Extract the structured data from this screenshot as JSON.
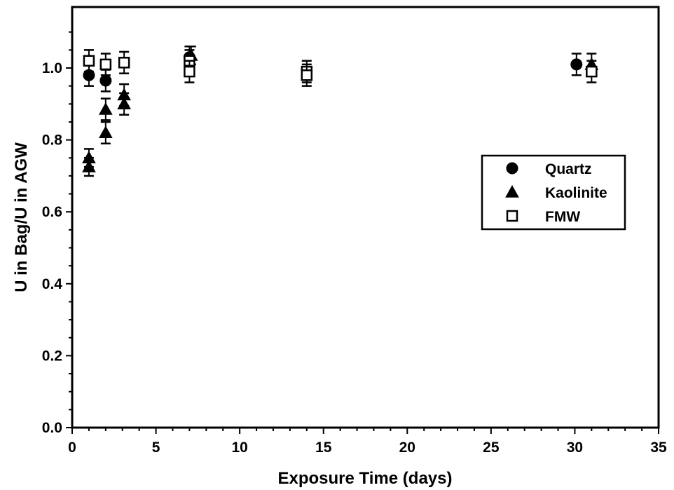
{
  "chart_data": {
    "type": "scatter",
    "title": "",
    "xlabel": "Exposure Time (days)",
    "ylabel": "U in Bag/U in AGW",
    "xlim": [
      0,
      35
    ],
    "ylim": [
      0.0,
      1.1
    ],
    "xticks": [
      "0",
      "5",
      "10",
      "15",
      "20",
      "25",
      "30",
      "35"
    ],
    "yticks": [
      "0.0",
      "0.2",
      "0.4",
      "0.6",
      "0.8",
      "1.0"
    ],
    "grid": false,
    "legend_position": "right",
    "series": [
      {
        "name": "Quartz",
        "marker": "circle-filled",
        "points": [
          {
            "x": 1.0,
            "y": 0.98,
            "err": 0.03
          },
          {
            "x": 2.0,
            "y": 0.965,
            "err": 0.03
          },
          {
            "x": 7.0,
            "y": 1.03,
            "err": 0.03
          },
          {
            "x": 30.1,
            "y": 1.01,
            "err": 0.03
          }
        ]
      },
      {
        "name": "Kaolinite",
        "marker": "triangle-filled",
        "points": [
          {
            "x": 1.0,
            "y": 0.75,
            "err": 0.025
          },
          {
            "x": 1.0,
            "y": 0.725,
            "err": 0.025
          },
          {
            "x": 2.0,
            "y": 0.885,
            "err": 0.03
          },
          {
            "x": 2.0,
            "y": 0.82,
            "err": 0.03
          },
          {
            "x": 3.1,
            "y": 0.925,
            "err": 0.03
          },
          {
            "x": 3.1,
            "y": 0.9,
            "err": 0.03
          },
          {
            "x": 7.1,
            "y": 1.035,
            "err": 0.025
          },
          {
            "x": 31.0,
            "y": 1.01,
            "err": 0.03
          }
        ]
      },
      {
        "name": "FMW",
        "marker": "square-open",
        "points": [
          {
            "x": 1.0,
            "y": 1.02,
            "err": 0.03
          },
          {
            "x": 2.0,
            "y": 1.01,
            "err": 0.03
          },
          {
            "x": 3.1,
            "y": 1.015,
            "err": 0.03
          },
          {
            "x": 7.0,
            "y": 1.02,
            "err": 0.03
          },
          {
            "x": 7.0,
            "y": 0.99,
            "err": 0.03
          },
          {
            "x": 14.0,
            "y": 0.99,
            "err": 0.03
          },
          {
            "x": 14.0,
            "y": 0.98,
            "err": 0.03
          },
          {
            "x": 31.0,
            "y": 0.99,
            "err": 0.03
          }
        ]
      }
    ]
  },
  "legend": {
    "items": [
      {
        "label": "Quartz",
        "marker": "circle-filled"
      },
      {
        "label": "Kaolinite",
        "marker": "triangle-filled"
      },
      {
        "label": "FMW",
        "marker": "square-open"
      }
    ]
  }
}
